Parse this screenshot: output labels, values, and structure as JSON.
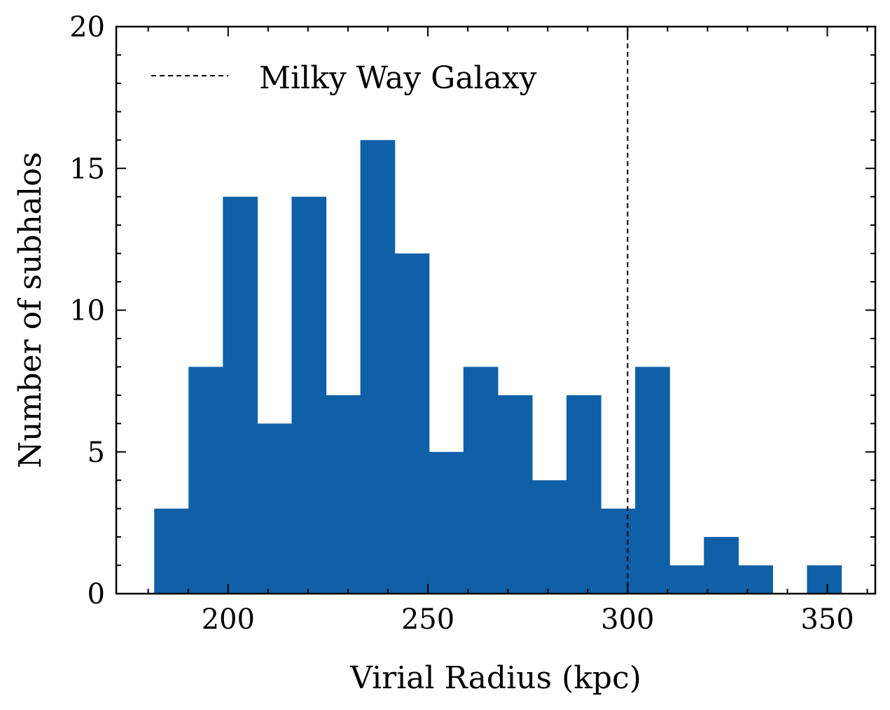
{
  "chart_data": {
    "type": "bar",
    "title": "",
    "xlabel": "Virial Radius (kpc)",
    "ylabel": "Number of subhalos",
    "xlim": [
      172,
      362
    ],
    "ylim": [
      0,
      20
    ],
    "x_ticks": [
      200,
      250,
      300,
      350
    ],
    "y_ticks": [
      0,
      5,
      10,
      15,
      20
    ],
    "bin_edges": [
      181.5,
      190.1,
      198.7,
      207.3,
      215.9,
      224.5,
      233.1,
      241.7,
      250.3,
      258.9,
      267.5,
      276.1,
      284.7,
      293.3,
      301.9,
      310.5,
      319.1,
      327.7,
      336.3,
      344.9,
      353.5
    ],
    "values": [
      3,
      8,
      14,
      6,
      14,
      7,
      16,
      12,
      5,
      8,
      7,
      4,
      7,
      3,
      8,
      1,
      2,
      1,
      0,
      1
    ],
    "bar_color": "#1060a8",
    "reference_line": {
      "x": 300,
      "label": "Milky Way Galaxy",
      "style": "dashed",
      "color": "#000000"
    },
    "legend": {
      "position": "top-left",
      "entries": [
        "Milky Way Galaxy"
      ]
    },
    "grid": false
  }
}
